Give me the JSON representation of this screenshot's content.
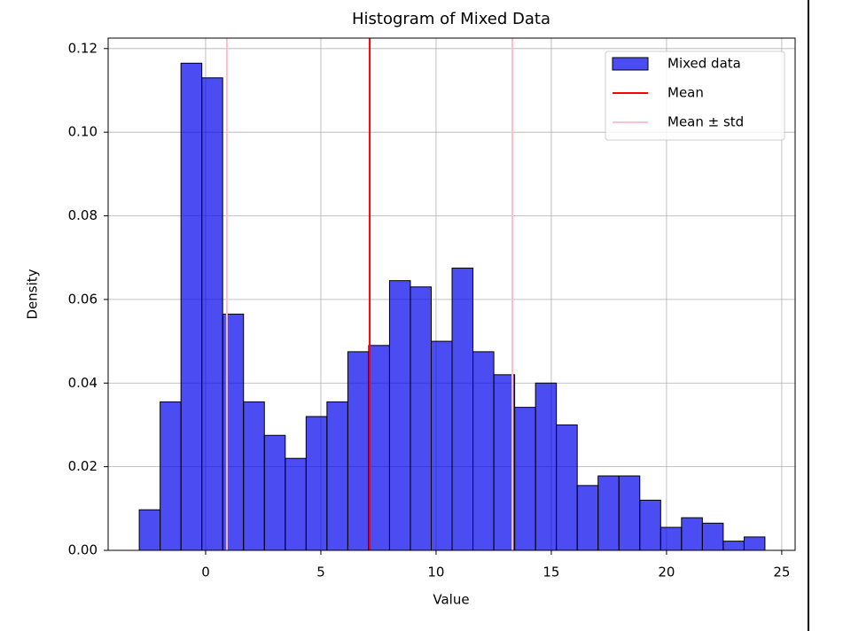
{
  "chart_data": {
    "type": "histogram",
    "title": "Histogram of Mixed Data",
    "xlabel": "Value",
    "ylabel": "Density",
    "bins": [
      -2.88,
      -1.975,
      -1.07,
      -0.165,
      0.74,
      1.645,
      2.55,
      3.455,
      4.36,
      5.265,
      6.17,
      7.075,
      7.98,
      8.885,
      9.79,
      10.695,
      11.6,
      12.505,
      13.41,
      14.315,
      15.22,
      16.125,
      17.03,
      17.935,
      18.84,
      19.745,
      20.65,
      21.555,
      22.46,
      23.365,
      24.27
    ],
    "values": [
      0.0097,
      0.0355,
      0.1165,
      0.113,
      0.0565,
      0.0355,
      0.0275,
      0.022,
      0.032,
      0.0355,
      0.0475,
      0.049,
      0.0645,
      0.063,
      0.05,
      0.0675,
      0.0475,
      0.042,
      0.0342,
      0.04,
      0.03,
      0.0155,
      0.0178,
      0.0178,
      0.012,
      0.0055,
      0.0078,
      0.0065,
      0.0022,
      0.0032
    ],
    "name": "Mixed data",
    "color": "#0000ee",
    "edgecolor": "#000000",
    "opacity": 0.7,
    "lines": [
      {
        "name": "Mean",
        "color": "#ff0000",
        "x": [
          7.12
        ]
      },
      {
        "name": "Mean ± std",
        "color": "#ffc0cb",
        "x": [
          0.92,
          13.31
        ]
      }
    ],
    "xlim": [
      -4.23,
      25.58
    ],
    "ylim": [
      0,
      0.1225
    ],
    "xticks": [
      0,
      5,
      10,
      15,
      20,
      25
    ],
    "yticks": [
      {
        "value": 0,
        "label": "0.00"
      },
      {
        "value": 0.02,
        "label": "0.02"
      },
      {
        "value": 0.04,
        "label": "0.04"
      },
      {
        "value": 0.06,
        "label": "0.06"
      },
      {
        "value": 0.08,
        "label": "0.08"
      },
      {
        "value": 0.1,
        "label": "0.10"
      },
      {
        "value": 0.12,
        "label": "0.12"
      }
    ],
    "grid": true,
    "legend": "upper right"
  }
}
